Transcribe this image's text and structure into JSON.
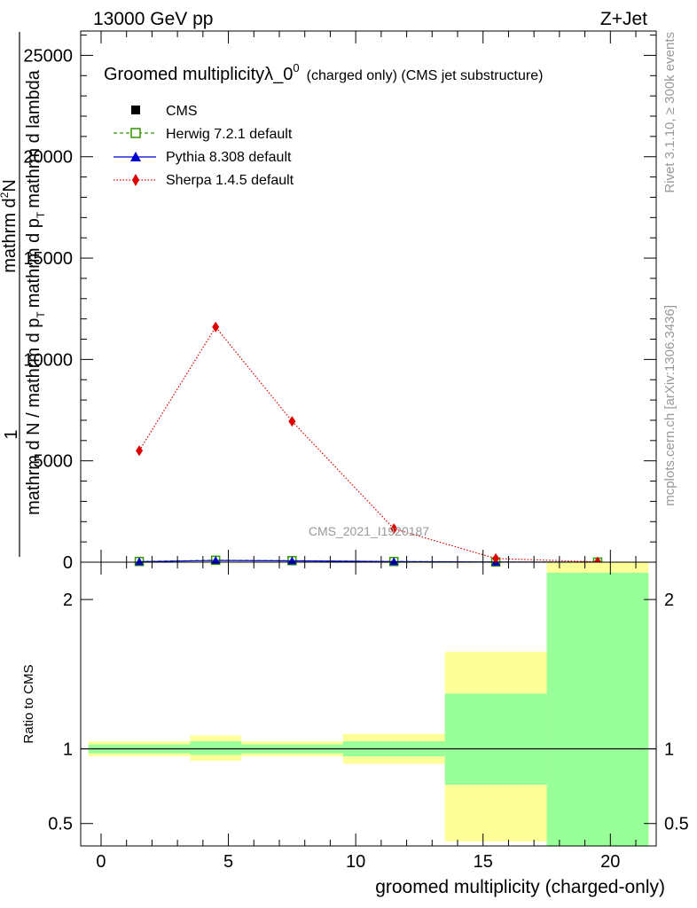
{
  "chart_data": [
    {
      "type": "line",
      "header_left": "13000 GeV pp",
      "header_right": "Z+Jet",
      "title_main": "Groomed multiplicityλ_0",
      "title_sup": "0",
      "title_small": "(charged only) (CMS jet substructure)",
      "ylabel_pieces": {
        "one": "1",
        "top": "mathrm d",
        "top_sup": "2",
        "top_n": "N",
        "denominator": "mathrm d N / mathrm d p",
        "den_sub1": "T",
        "den_mid": "mathrm d p",
        "den_sub2": "T",
        "den_end": "mathrm d lambda"
      },
      "side_rivet": "Rivet 3.1.10, ≥ 300k events",
      "side_mcplots": "mcplots.cern.ch [arXiv:1306.3436]",
      "watermark": "CMS_2021_I1920187",
      "xlim": [
        -0.8,
        21.8
      ],
      "ylim": [
        0,
        26200
      ],
      "yticks": [
        0,
        5000,
        10000,
        15000,
        20000,
        25000
      ],
      "ytick_labels": [
        "0",
        "5000",
        "10000",
        "15000",
        "20000",
        "25000"
      ],
      "bin_edges": [
        -0.5,
        3.5,
        5.5,
        9.5,
        13.5,
        17.5,
        21.5
      ],
      "x_points": [
        1.5,
        4.5,
        7.5,
        11.5,
        15.5,
        19.5
      ],
      "series": [
        {
          "name": "CMS",
          "legend": "CMS",
          "color": "#000000",
          "marker": "square",
          "line": "none",
          "values": [
            30,
            90,
            70,
            30,
            8,
            2
          ]
        },
        {
          "name": "Herwig",
          "legend": "Herwig 7.2.1 default",
          "color": "#339900",
          "marker": "open-square",
          "line": "dashed",
          "values": [
            35,
            95,
            75,
            35,
            10,
            3
          ]
        },
        {
          "name": "Pythia",
          "legend": "Pythia 8.308 default",
          "color": "#0000cc",
          "marker": "triangle",
          "line": "solid",
          "values": [
            25,
            85,
            65,
            28,
            7,
            2
          ]
        },
        {
          "name": "Sherpa",
          "legend": "Sherpa 1.4.5 default",
          "color": "#dd0000",
          "marker": "diamond",
          "line": "dotted",
          "values": [
            5500,
            11600,
            6950,
            1650,
            180,
            15
          ]
        }
      ]
    },
    {
      "type": "ratio",
      "ylabel": "Ratio to CMS",
      "xlabel": "groomed multiplicity (charged-only)",
      "xlim": [
        -0.8,
        21.8
      ],
      "ylim": [
        0.35,
        2.25
      ],
      "yticks": [
        0.5,
        1,
        2
      ],
      "ytick_labels": [
        "0.5",
        "1",
        "2"
      ],
      "xticks": [
        0,
        5,
        10,
        15,
        20
      ],
      "xtick_labels": [
        "0",
        "5",
        "10",
        "15",
        "20"
      ],
      "bin_edges": [
        -0.5,
        3.5,
        5.5,
        9.5,
        13.5,
        17.5,
        21.5
      ],
      "band_yellow": [
        [
          0.95,
          1.05
        ],
        [
          0.92,
          1.09
        ],
        [
          0.95,
          1.05
        ],
        [
          0.9,
          1.1
        ],
        [
          0.38,
          1.65
        ],
        [
          0.35,
          2.3
        ]
      ],
      "band_green": [
        [
          0.97,
          1.03
        ],
        [
          0.96,
          1.05
        ],
        [
          0.97,
          1.03
        ],
        [
          0.95,
          1.05
        ],
        [
          0.76,
          1.37
        ],
        [
          0.35,
          2.18
        ]
      ],
      "colors": {
        "yellow": "#ffff99",
        "green": "#99ff99",
        "reference": "#000000"
      }
    }
  ]
}
